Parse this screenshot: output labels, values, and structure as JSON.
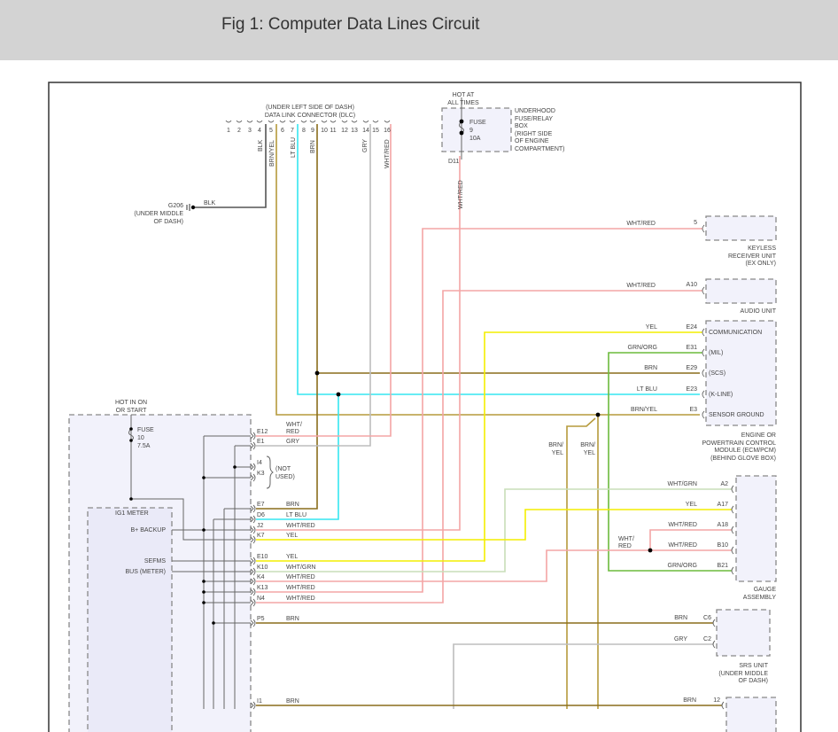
{
  "header": {
    "title": "Fig 1: Computer Data Lines Circuit"
  },
  "wire_colors": {
    "BLK": "#555555",
    "BRN": "#8a6d1c",
    "BRN/YEL": "#b59a3c",
    "LT BLU": "#35e6f0",
    "GRY": "#bdbdbd",
    "WHT/RED": "#f3a5a5",
    "YEL": "#f4ee00",
    "GRN/ORG": "#6cbb3c",
    "WHT/GRN": "#c8deb8"
  },
  "dlc": {
    "location": "(UNDER LEFT SIDE OF DASH)",
    "name": "DATA LINK CONNECTOR (DLC)",
    "pins": [
      "1",
      "2",
      "3",
      "4",
      "5",
      "6",
      "7",
      "8",
      "9",
      "10",
      "11",
      "12",
      "13",
      "14",
      "15",
      "16"
    ],
    "wires": [
      "BLK",
      "BRN/YEL",
      "LT BLU",
      "BRN",
      "GRY",
      "WHT/RED"
    ]
  },
  "ground": {
    "id": "G206",
    "loc1": "(UNDER MIDDLE",
    "loc2": "OF DASH)",
    "wire": "BLK"
  },
  "underhood": {
    "hot1": "HOT AT",
    "hot2": "ALL TIMES",
    "fuse": "FUSE",
    "fuse_no": "9",
    "fuse_amp": "10A",
    "name": [
      "UNDERHOOD",
      "FUSE/RELAY",
      "BOX",
      "(RIGHT SIDE",
      "OF ENGINE",
      "COMPARTMENT)"
    ],
    "terminal": "D11",
    "wire": "WHT/RED"
  },
  "keyless": {
    "wire": "WHT/RED",
    "pin": "5",
    "name": [
      "KEYLESS",
      "RECEIVER UNIT",
      "(EX ONLY)"
    ]
  },
  "audio": {
    "wire": "WHT/RED",
    "pin": "A10",
    "name": "AUDIO UNIT"
  },
  "ecm": {
    "rows": [
      {
        "wire": "YEL",
        "pin": "E24",
        "func": "COMMUNICATION"
      },
      {
        "wire": "GRN/ORG",
        "pin": "E31",
        "func": "(MIL)"
      },
      {
        "wire": "BRN",
        "pin": "E29",
        "func": "(SCS)"
      },
      {
        "wire": "LT BLU",
        "pin": "E23",
        "func": "(K-LINE)"
      },
      {
        "wire": "BRN/YEL",
        "pin": "E3",
        "func": "SENSOR GROUND"
      }
    ],
    "name": [
      "ENGINE OR",
      "POWERTRAIN CONTROL",
      "MODULE (ECM/PCM)",
      "(BEHIND GLOVE BOX)"
    ],
    "branch_labels": [
      [
        "BRN/",
        "YEL"
      ],
      [
        "BRN/",
        "YEL"
      ]
    ]
  },
  "gauge": {
    "rows": [
      {
        "wire": "WHT/GRN",
        "pin": "A2"
      },
      {
        "wire": "YEL",
        "pin": "A17"
      },
      {
        "wire": "WHT/RED",
        "pin": "A18"
      },
      {
        "wire": "WHT/RED",
        "pin": "B10"
      },
      {
        "wire": "GRN/ORG",
        "pin": "B21"
      }
    ],
    "splice_label": [
      "WHT/",
      "RED"
    ],
    "name": [
      "GAUGE",
      "ASSEMBLY"
    ]
  },
  "srs": {
    "rows": [
      {
        "wire": "BRN",
        "pin": "C6"
      },
      {
        "wire": "GRY",
        "pin": "C2"
      }
    ],
    "name": [
      "SRS UNIT",
      "(UNDER MIDDLE",
      "OF DASH)"
    ]
  },
  "bottom_unit": {
    "wire": "BRN",
    "pin": "12"
  },
  "meter": {
    "hot1": "HOT IN ON",
    "hot2": "OR START",
    "fuse": "FUSE",
    "fuse_no": "10",
    "fuse_amp": "7.5A",
    "ig1": "IG1 METER",
    "backup": "B+ BACKUP",
    "sefms": "SEFMS",
    "bus": "BUS (METER)",
    "not_used": [
      "(NOT",
      "USED)"
    ],
    "rows": [
      {
        "pin": "E12",
        "wire": "WHT/ RED"
      },
      {
        "pin": "E1",
        "wire": "GRY"
      },
      {
        "pin": "I4",
        "wire": ""
      },
      {
        "pin": "K3",
        "wire": ""
      },
      {
        "pin": "E7",
        "wire": "BRN"
      },
      {
        "pin": "D6",
        "wire": "LT BLU"
      },
      {
        "pin": "J2",
        "wire": "WHT/RED"
      },
      {
        "pin": "K7",
        "wire": "YEL"
      },
      {
        "pin": "E10",
        "wire": "YEL"
      },
      {
        "pin": "K10",
        "wire": "WHT/GRN"
      },
      {
        "pin": "K4",
        "wire": "WHT/RED"
      },
      {
        "pin": "K13",
        "wire": "WHT/RED"
      },
      {
        "pin": "N4",
        "wire": "WHT/RED"
      },
      {
        "pin": "P5",
        "wire": "BRN"
      },
      {
        "pin": "I1",
        "wire": "BRN"
      }
    ],
    "e12_wire_1": "WHT/",
    "e12_wire_2": "RED"
  }
}
